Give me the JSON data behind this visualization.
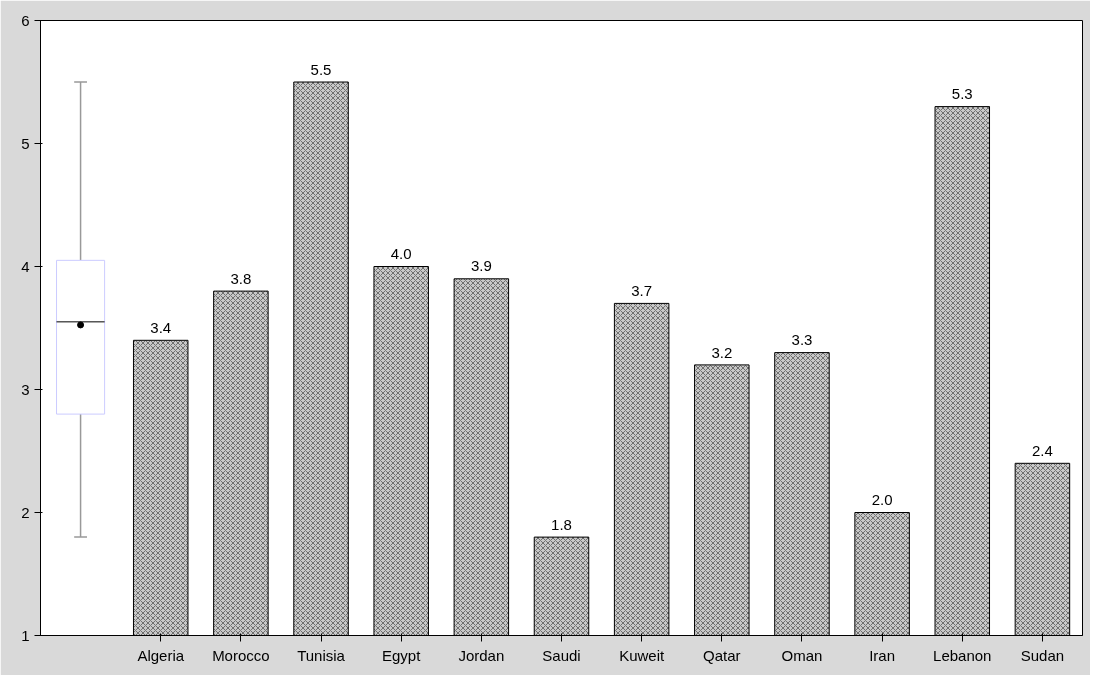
{
  "chart_data": {
    "type": "bar",
    "categories": [
      null,
      "Algeria",
      "Morocco",
      "Tunisia",
      "Egypt",
      "Jordan",
      "Saudi",
      "Kuweit",
      "Qatar",
      "Oman",
      "Iran",
      "Lebanon",
      "Sudan"
    ],
    "series": [
      {
        "type": "box",
        "color": "#ffffff",
        "boxes": [
          {
            "low": 1.8,
            "q1": 2.8,
            "median": 3.55,
            "q3": 4.05,
            "high": 5.5,
            "mean": 3.525
          },
          null,
          null,
          null,
          null,
          null,
          null,
          null,
          null,
          null,
          null,
          null,
          null
        ]
      },
      {
        "color": "#c8c8c8",
        "values": [
          null,
          3.4,
          3.8,
          5.5,
          4.0,
          3.9,
          1.8,
          3.7,
          3.2,
          3.3,
          2.0,
          5.3,
          2.4
        ],
        "value_labels": [
          null,
          "3.4",
          "3.8",
          "5.5",
          "4.0",
          "3.9",
          "1.8",
          "3.7",
          "3.2",
          "3.3",
          "2.0",
          "5.3",
          "2.4"
        ]
      }
    ],
    "ylim": [
      1,
      6
    ],
    "yticks": [
      1,
      2,
      3,
      4,
      5,
      6
    ],
    "grid": false
  }
}
